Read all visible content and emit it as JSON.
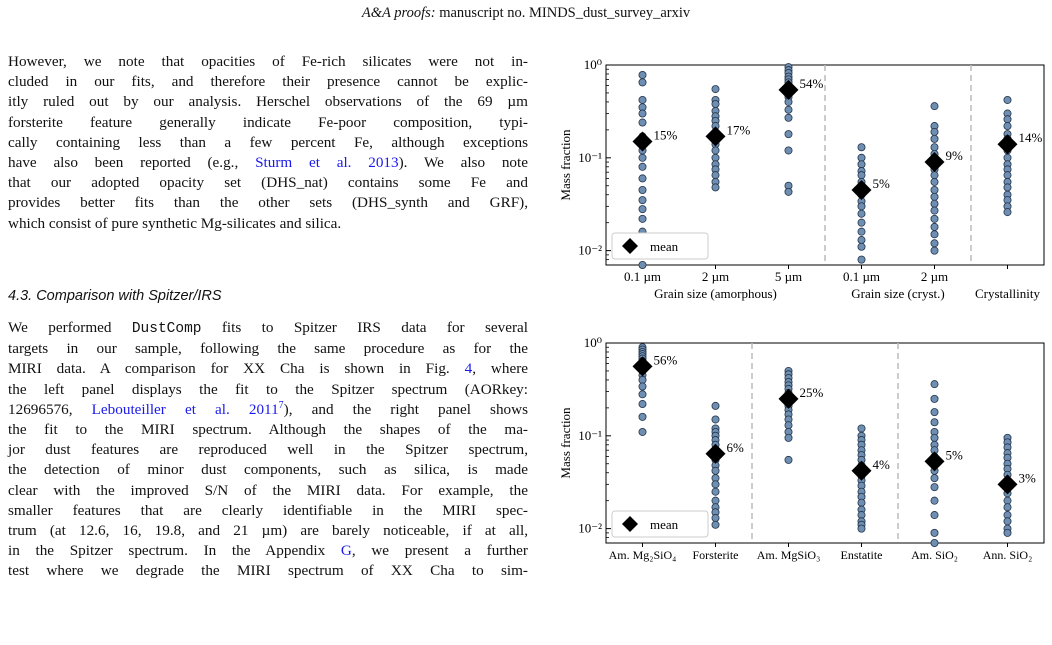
{
  "running_head": {
    "journal": "A&A proofs:",
    "rest": "manuscript no. MINDS_dust_survey_arxiv"
  },
  "para1_lines": [
    [
      "However, we note that opacities of Fe-rich silicates were not in-"
    ],
    [
      "cluded in our fits, and therefore their presence cannot be explic-"
    ],
    [
      "itly ruled out by our analysis. Herschel observations of the 69 µm"
    ],
    [
      "forsterite feature generally indicate Fe-poor composition, typi-"
    ],
    [
      "cally containing less than a few percent Fe, although exceptions"
    ],
    [
      "have also been reported (e.g., ",
      "Sturm et al. 2013",
      "). We also note"
    ],
    [
      "that our adopted opacity set (DHS_nat) contains some Fe and"
    ],
    [
      "provides better fits than the other sets (DHS_synth and GRF),"
    ],
    [
      "which consist of pure synthetic Mg-silicates and silica."
    ]
  ],
  "section_heading": "4.3. Comparison with Spitzer/IRS",
  "para2_lines": [
    [
      "We performed ",
      "DustComp",
      " fits to Spitzer IRS data for several"
    ],
    [
      "targets in our sample, following the same procedure as for the"
    ],
    [
      "MIRI data. A comparison for XX Cha is shown in Fig. ",
      "4",
      ", where"
    ],
    [
      "the left panel displays the fit to the Spitzer spectrum (AORkey:"
    ],
    [
      "12696576, ",
      "Lebouteiller et al. 2011",
      "7",
      "), and the right panel shows"
    ],
    [
      "the fit to the MIRI spectrum. Although the shapes of the ma-"
    ],
    [
      "jor dust features are reproduced well in the Spitzer spectrum,"
    ],
    [
      "the detection of minor dust components, such as silica, is made"
    ],
    [
      "clear with the improved S/N of the MIRI data. For example, the"
    ],
    [
      "smaller features that are clearly identifiable in the MIRI spec-"
    ],
    [
      "trum (at 12.6, 16, 19.8, and 21 µm) are barely noticeable, if at all,"
    ],
    [
      "in the Spitzer spectrum. In the Appendix ",
      "G",
      ", we present a further"
    ],
    [
      "test where we degrade the MIRI spectrum of XX Cha to sim-"
    ]
  ],
  "chart_data": [
    {
      "type": "scatter",
      "ylabel": "Mass fraction",
      "yscale": "log",
      "ylim": [
        0.007,
        1.0
      ],
      "yticks": [
        "10⁻²",
        "10⁻¹",
        "10⁰"
      ],
      "tick_labels": [
        "0.1 µm",
        "2 µm",
        "5 µm",
        "0.1 µm",
        "2 µm",
        ""
      ],
      "group_labels": [
        "Grain size (amorphous)",
        "Grain size (cryst.)",
        "Crystallinity"
      ],
      "legend": "mean",
      "series": [
        {
          "points": [
            0.78,
            0.65,
            0.42,
            0.35,
            0.3,
            0.24,
            0.17,
            0.12,
            0.1,
            0.08,
            0.06,
            0.045,
            0.035,
            0.028,
            0.022,
            0.016,
            0.011,
            0.007
          ],
          "mean": 0.15,
          "label": "15%"
        },
        {
          "points": [
            0.55,
            0.42,
            0.38,
            0.32,
            0.28,
            0.25,
            0.22,
            0.19,
            0.17,
            0.15,
            0.14,
            0.12,
            0.1,
            0.085,
            0.075,
            0.065,
            0.055,
            0.048
          ],
          "mean": 0.17,
          "label": "17%"
        },
        {
          "points": [
            0.95,
            0.88,
            0.82,
            0.75,
            0.7,
            0.65,
            0.6,
            0.55,
            0.5,
            0.45,
            0.4,
            0.33,
            0.27,
            0.18,
            0.12,
            0.05,
            0.043
          ],
          "mean": 0.54,
          "label": "54%"
        },
        {
          "points": [
            0.13,
            0.1,
            0.085,
            0.072,
            0.065,
            0.055,
            0.048,
            0.04,
            0.034,
            0.03,
            0.025,
            0.02,
            0.016,
            0.013,
            0.011,
            0.008
          ],
          "mean": 0.045,
          "label": "5%"
        },
        {
          "points": [
            0.36,
            0.22,
            0.19,
            0.16,
            0.13,
            0.11,
            0.095,
            0.085,
            0.075,
            0.065,
            0.055,
            0.045,
            0.038,
            0.032,
            0.027,
            0.022,
            0.018,
            0.015,
            0.012,
            0.01
          ],
          "mean": 0.09,
          "label": "9%"
        },
        {
          "points": [
            0.42,
            0.3,
            0.26,
            0.22,
            0.18,
            0.16,
            0.14,
            0.12,
            0.1,
            0.085,
            0.075,
            0.065,
            0.055,
            0.048,
            0.04,
            0.035,
            0.03,
            0.026
          ],
          "mean": 0.14,
          "label": "14%"
        }
      ]
    },
    {
      "type": "scatter",
      "ylabel": "Mass fraction",
      "yscale": "log",
      "ylim": [
        0.007,
        1.0
      ],
      "yticks": [
        "10⁻²",
        "10⁻¹",
        "10⁰"
      ],
      "tick_labels": [
        "Am. Mg₂SiO₄",
        "Forsterite",
        "Am. MgSiO₃",
        "Enstatite",
        "Am. SiO₂",
        "Ann. SiO₂"
      ],
      "legend": "mean",
      "series": [
        {
          "points": [
            0.9,
            0.85,
            0.8,
            0.76,
            0.72,
            0.68,
            0.64,
            0.6,
            0.55,
            0.5,
            0.45,
            0.4,
            0.34,
            0.28,
            0.22,
            0.16,
            0.11
          ],
          "mean": 0.56,
          "label": "56%"
        },
        {
          "points": [
            0.21,
            0.15,
            0.12,
            0.11,
            0.1,
            0.09,
            0.08,
            0.07,
            0.062,
            0.055,
            0.048,
            0.042,
            0.035,
            0.03,
            0.025,
            0.02,
            0.017,
            0.015,
            0.013,
            0.011
          ],
          "mean": 0.064,
          "label": "6%"
        },
        {
          "points": [
            0.5,
            0.46,
            0.42,
            0.38,
            0.35,
            0.32,
            0.29,
            0.26,
            0.23,
            0.21,
            0.19,
            0.17,
            0.15,
            0.13,
            0.11,
            0.095,
            0.055
          ],
          "mean": 0.25,
          "label": "25%"
        },
        {
          "points": [
            0.12,
            0.1,
            0.09,
            0.08,
            0.07,
            0.062,
            0.055,
            0.048,
            0.042,
            0.037,
            0.033,
            0.029,
            0.025,
            0.022,
            0.019,
            0.016,
            0.014,
            0.012,
            0.011,
            0.01
          ],
          "mean": 0.042,
          "label": "4%"
        },
        {
          "points": [
            0.36,
            0.25,
            0.18,
            0.14,
            0.11,
            0.095,
            0.08,
            0.07,
            0.06,
            0.05,
            0.042,
            0.035,
            0.028,
            0.02,
            0.014,
            0.009,
            0.007
          ],
          "mean": 0.053,
          "label": "5%"
        },
        {
          "points": [
            0.095,
            0.085,
            0.075,
            0.065,
            0.058,
            0.05,
            0.044,
            0.038,
            0.033,
            0.028,
            0.024,
            0.02,
            0.017,
            0.014,
            0.012,
            0.01,
            0.009
          ],
          "mean": 0.03,
          "label": "3%"
        }
      ]
    }
  ]
}
